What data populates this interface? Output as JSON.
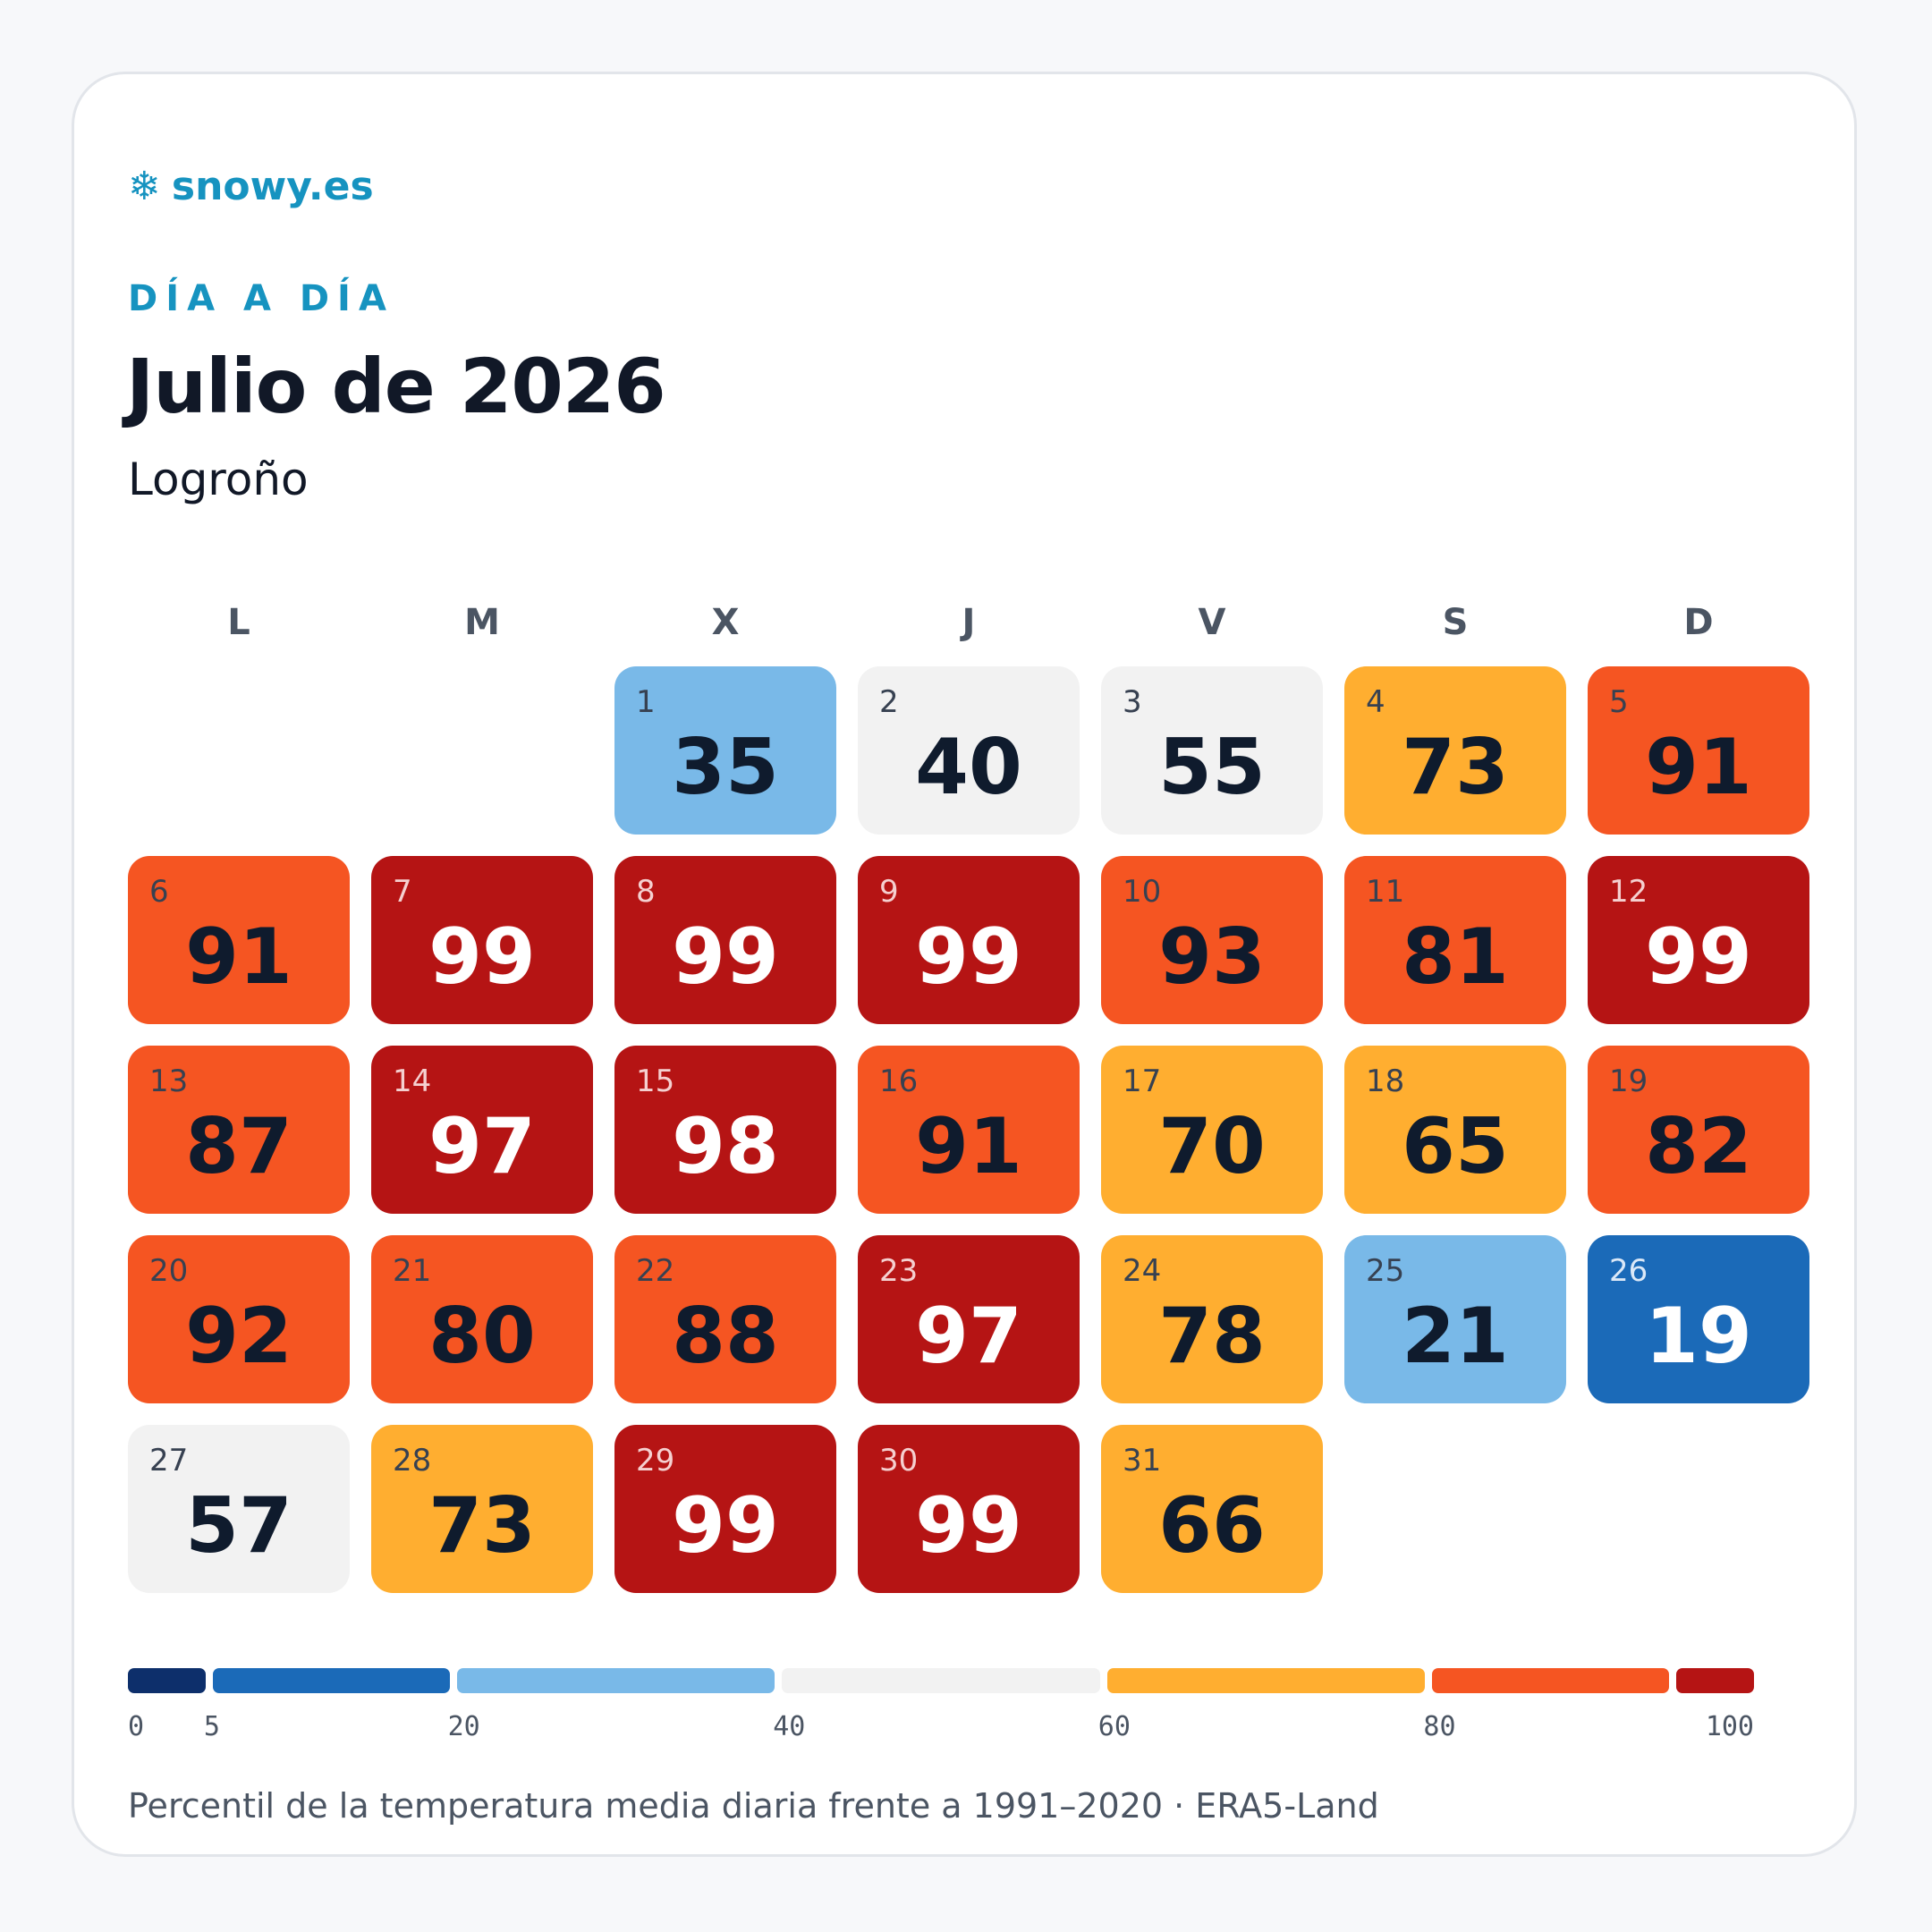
{
  "brand": {
    "icon": "snowflake-icon",
    "name": "snowy.es"
  },
  "eyebrow": "DÍA A DÍA",
  "title": "Julio de 2026",
  "location": "Logroño",
  "weekdays": [
    "L",
    "M",
    "X",
    "J",
    "V",
    "S",
    "D"
  ],
  "start_weekday_index": 2,
  "days": [
    {
      "day": "1",
      "pct": "35"
    },
    {
      "day": "2",
      "pct": "40"
    },
    {
      "day": "3",
      "pct": "55"
    },
    {
      "day": "4",
      "pct": "73"
    },
    {
      "day": "5",
      "pct": "91"
    },
    {
      "day": "6",
      "pct": "91"
    },
    {
      "day": "7",
      "pct": "99"
    },
    {
      "day": "8",
      "pct": "99"
    },
    {
      "day": "9",
      "pct": "99"
    },
    {
      "day": "10",
      "pct": "93"
    },
    {
      "day": "11",
      "pct": "81"
    },
    {
      "day": "12",
      "pct": "99"
    },
    {
      "day": "13",
      "pct": "87"
    },
    {
      "day": "14",
      "pct": "97"
    },
    {
      "day": "15",
      "pct": "98"
    },
    {
      "day": "16",
      "pct": "91"
    },
    {
      "day": "17",
      "pct": "70"
    },
    {
      "day": "18",
      "pct": "65"
    },
    {
      "day": "19",
      "pct": "82"
    },
    {
      "day": "20",
      "pct": "92"
    },
    {
      "day": "21",
      "pct": "80"
    },
    {
      "day": "22",
      "pct": "88"
    },
    {
      "day": "23",
      "pct": "97"
    },
    {
      "day": "24",
      "pct": "78"
    },
    {
      "day": "25",
      "pct": "21"
    },
    {
      "day": "26",
      "pct": "19"
    },
    {
      "day": "27",
      "pct": "57"
    },
    {
      "day": "28",
      "pct": "73"
    },
    {
      "day": "29",
      "pct": "99"
    },
    {
      "day": "30",
      "pct": "99"
    },
    {
      "day": "31",
      "pct": "66"
    }
  ],
  "legend": {
    "bins": [
      {
        "from": 0,
        "to": 5,
        "color": "#0d2f6b"
      },
      {
        "from": 5,
        "to": 20,
        "color": "#1b6ab8"
      },
      {
        "from": 20,
        "to": 40,
        "color": "#79b9e8"
      },
      {
        "from": 40,
        "to": 60,
        "color": "#f2f2f2"
      },
      {
        "from": 60,
        "to": 80,
        "color": "#ffae30"
      },
      {
        "from": 80,
        "to": 95,
        "color": "#f55522"
      },
      {
        "from": 95,
        "to": 100,
        "color": "#b51414"
      }
    ],
    "ticks": [
      "0",
      "5",
      "20",
      "40",
      "60",
      "80",
      "100"
    ]
  },
  "footer": "Percentil de la temperatura media diaria frente a 1991–2020 · ERA5-Land"
}
